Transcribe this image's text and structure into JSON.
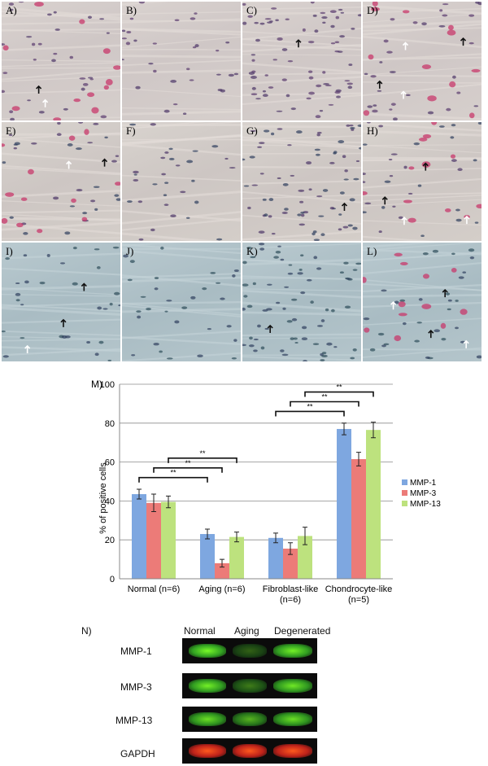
{
  "panels": {
    "labels": [
      "A)",
      "B)",
      "C)",
      "D)",
      "E)",
      "F)",
      "G)",
      "H)",
      "I)",
      "J)",
      "K)",
      "L)"
    ]
  },
  "chart_data": {
    "type": "bar",
    "panel_label": "M)",
    "categories": [
      "Normal (n=6)",
      "Aging (n=6)",
      "Fibroblast-like (n=6)",
      "Chondrocyte-like (n=5)"
    ],
    "series": [
      {
        "name": "MMP-1",
        "color": "#7ea7e0",
        "values": [
          43.5,
          23,
          21,
          77
        ],
        "errors": [
          2.5,
          2.5,
          2.5,
          3
        ]
      },
      {
        "name": "MMP-3",
        "color": "#ec7b78",
        "values": [
          39,
          8,
          15.5,
          61.5
        ],
        "errors": [
          4.5,
          2,
          3,
          3.5
        ]
      },
      {
        "name": "MMP-13",
        "color": "#bde27e",
        "values": [
          39.5,
          21.5,
          22,
          76.5
        ],
        "errors": [
          3,
          2.5,
          4.5,
          4
        ]
      }
    ],
    "ylabel": "% of positive cells",
    "ylim": [
      0,
      100
    ],
    "yticks": [
      0,
      20,
      40,
      60,
      80,
      100
    ],
    "grid": true,
    "legend": "right",
    "significance_label": "**"
  },
  "blot": {
    "panel_label": "N)",
    "lanes": [
      "Normal",
      "Aging",
      "Degenerated"
    ],
    "rows": [
      {
        "label": "MMP-1",
        "color": "green",
        "intensity": [
          1.0,
          0.15,
          0.95
        ]
      },
      {
        "label": "MMP-3",
        "color": "green",
        "intensity": [
          0.95,
          0.3,
          0.9
        ]
      },
      {
        "label": "MMP-13",
        "color": "green",
        "intensity": [
          0.85,
          0.6,
          0.85
        ]
      },
      {
        "label": "GAPDH",
        "color": "red",
        "intensity": [
          1.0,
          1.0,
          1.0
        ]
      }
    ]
  }
}
